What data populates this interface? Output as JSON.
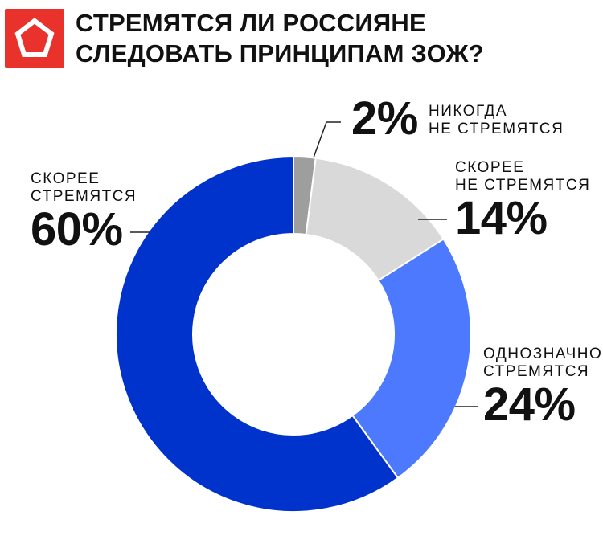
{
  "header": {
    "title_line1": "СТРЕМЯТСЯ ЛИ РОССИЯНЕ",
    "title_line2": "СЛЕДОВАТЬ ПРИНЦИПАМ ЗОЖ?"
  },
  "logo": {
    "icon": "pentagon-logo-icon",
    "background": "#e8322b",
    "foreground": "#ffffff"
  },
  "chart_data": {
    "type": "pie",
    "donut": true,
    "start": "top",
    "direction": "clockwise",
    "title": "СТРЕМЯТСЯ ЛИ РОССИЯНЕ СЛЕДОВАТЬ ПРИНЦИПАМ ЗОЖ?",
    "slices": [
      {
        "label": "НИКОГДА\nНЕ СТРЕМЯТСЯ",
        "value": 2,
        "display": "2%",
        "color": "#9e9e9e"
      },
      {
        "label": "СКОРЕЕ\nНЕ СТРЕМЯТСЯ",
        "value": 14,
        "display": "14%",
        "color": "#d9d9d9"
      },
      {
        "label": "ОДНОЗНАЧНО\nСТРЕМЯТСЯ",
        "value": 24,
        "display": "24%",
        "color": "#4d79ff"
      },
      {
        "label": "СКОРЕЕ\nСТРЕМЯТСЯ",
        "value": 60,
        "display": "60%",
        "color": "#0033cc"
      }
    ]
  }
}
